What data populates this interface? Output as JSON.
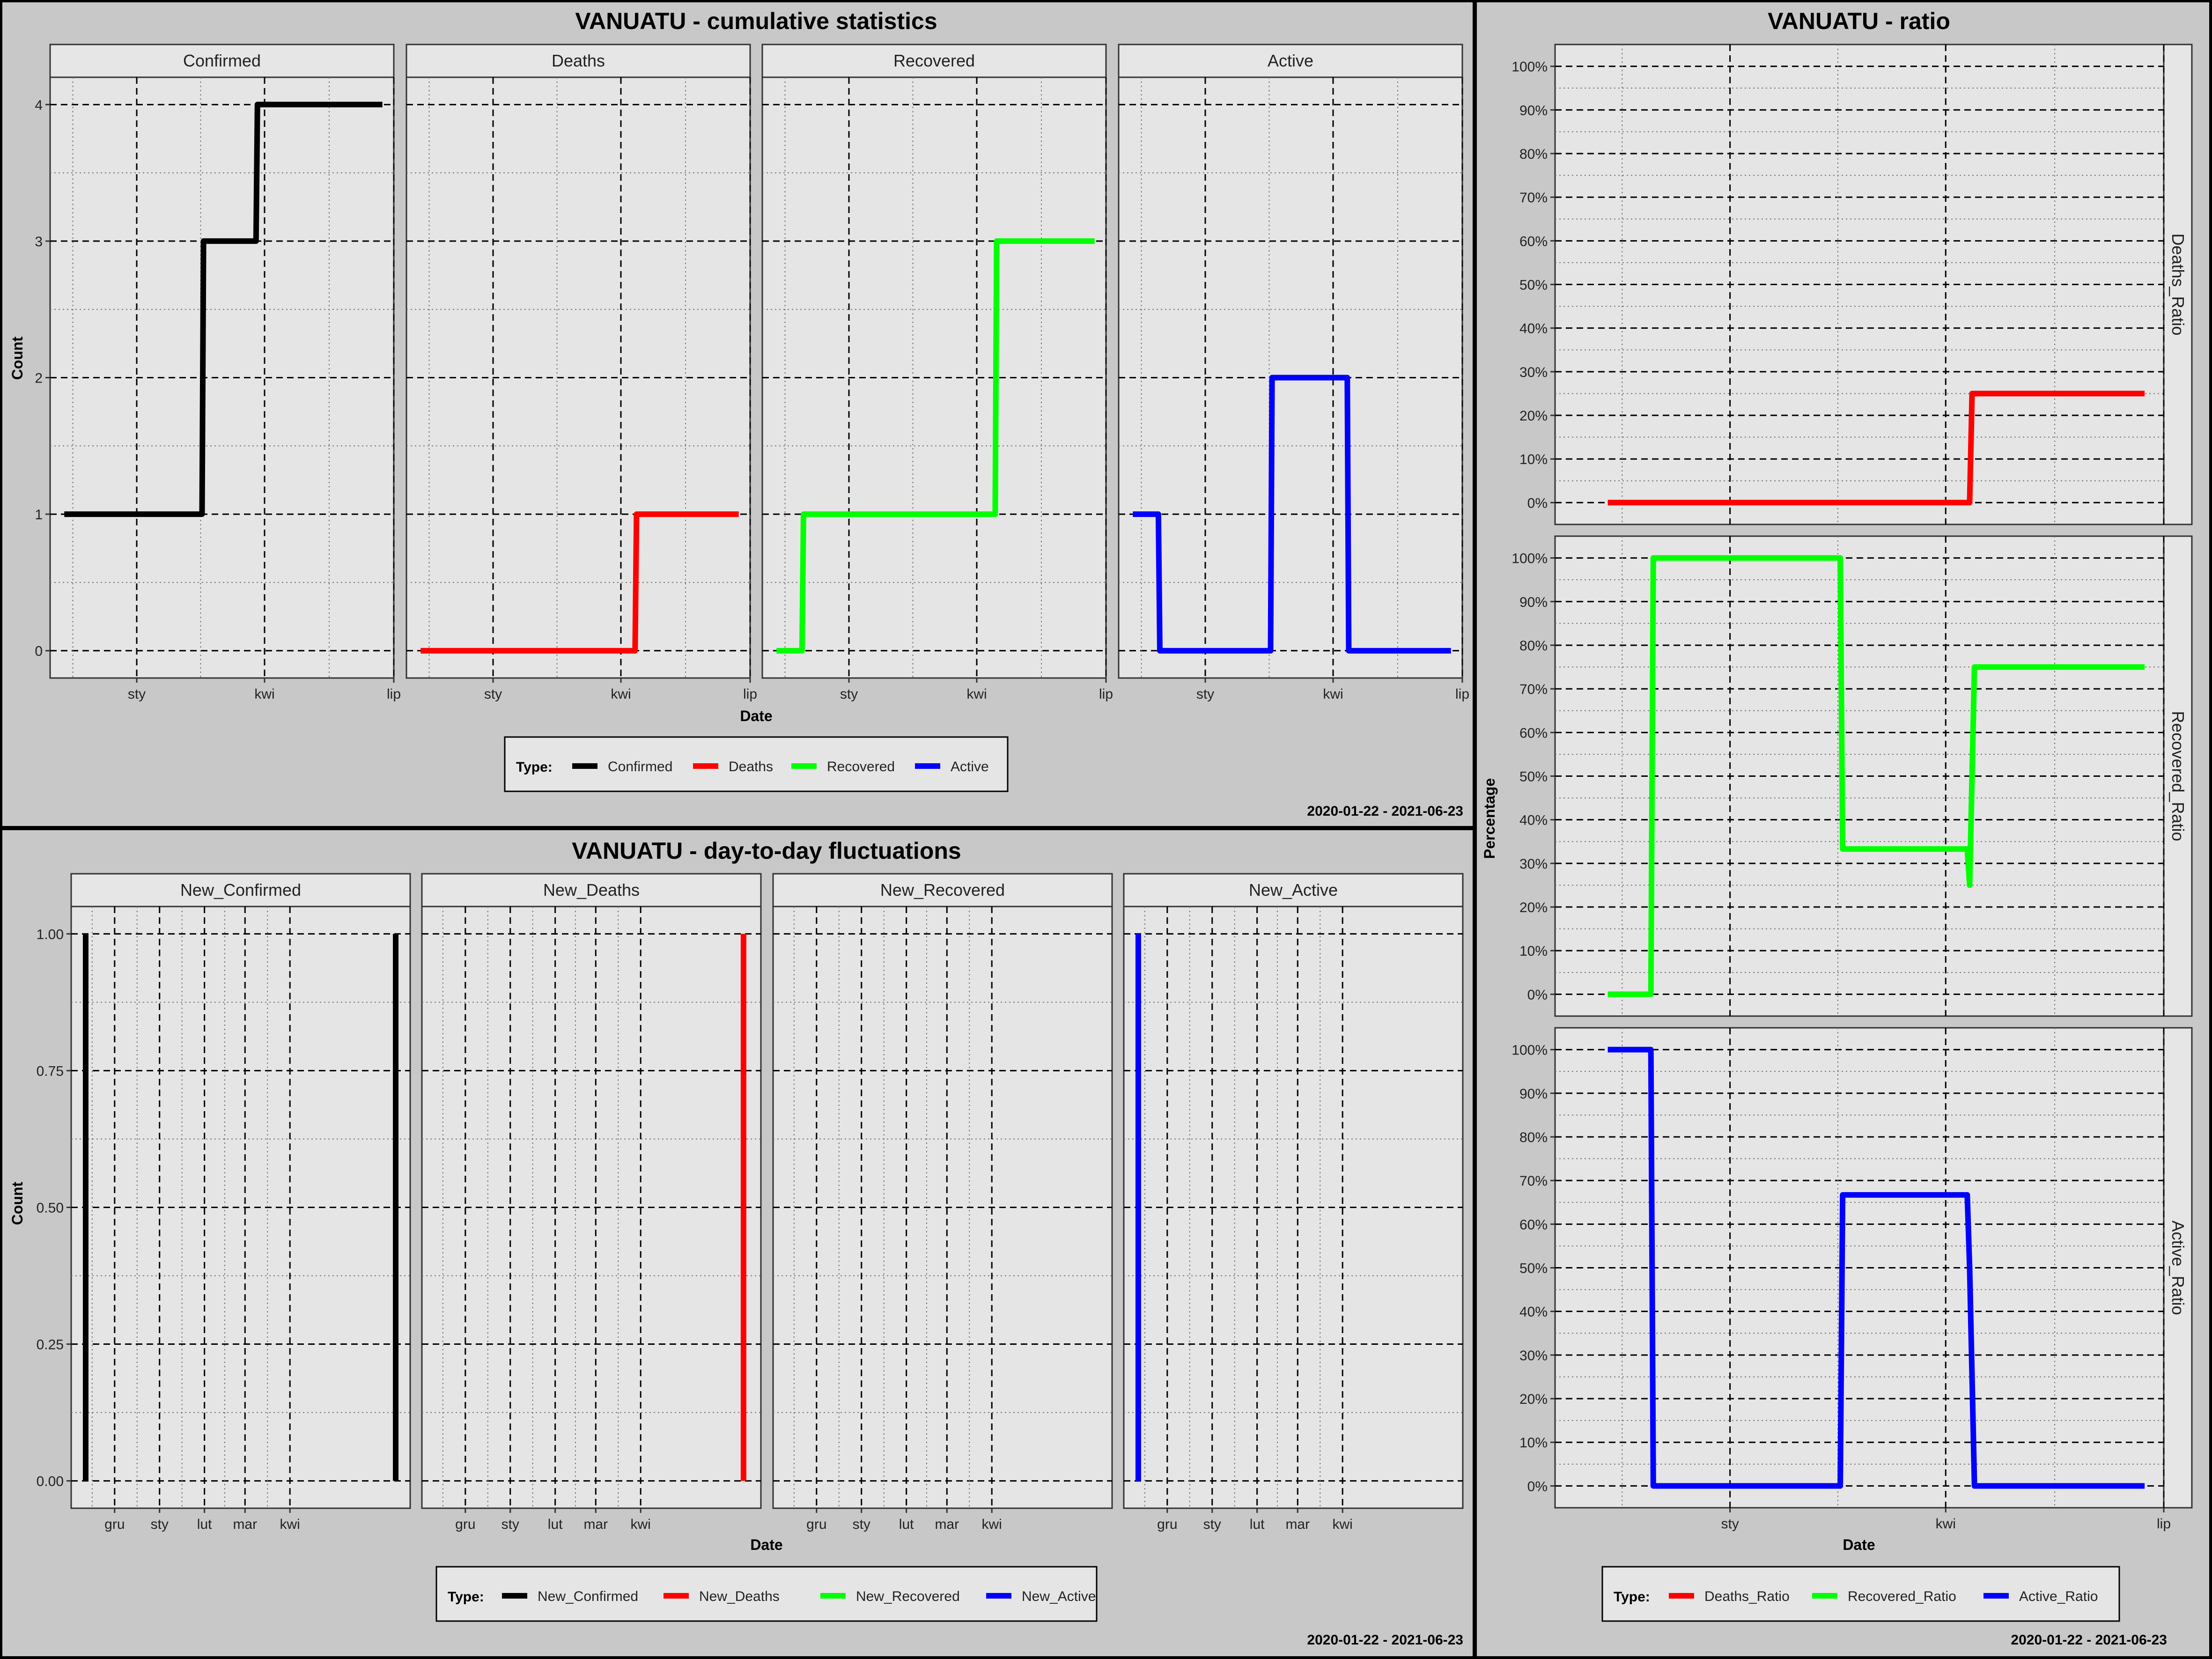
{
  "colors": {
    "Confirmed": "#000000",
    "Deaths": "#ff0000",
    "Recovered": "#00ff00",
    "Active": "#0000ff",
    "New_Confirmed": "#000000",
    "New_Deaths": "#ff0000",
    "New_Recovered": "#00ff00",
    "New_Active": "#0000ff",
    "Deaths_Ratio": "#ff0000",
    "Recovered_Ratio": "#00ff00",
    "Active_Ratio": "#0000ff",
    "background": "#c8c8c8",
    "panel": "#e5e5e5",
    "strip": "#e6e6e6"
  },
  "cumulative": {
    "title": "VANUATU - cumulative statistics",
    "xlabel": "Date",
    "ylabel": "Count",
    "legend_title": "Type:",
    "legend": [
      "Confirmed",
      "Deaths",
      "Recovered",
      "Active"
    ],
    "date_range": "2020-01-22 - 2021-06-23"
  },
  "fluctuations": {
    "title": "VANUATU - day-to-day fluctuations",
    "xlabel": "Date",
    "ylabel": "Count",
    "legend_title": "Type:",
    "legend": [
      "New_Confirmed",
      "New_Deaths",
      "New_Recovered",
      "New_Active"
    ],
    "date_range": "2020-01-22 - 2021-06-23"
  },
  "ratio": {
    "title": "VANUATU - ratio",
    "xlabel": "Date",
    "ylabel": "Percentage",
    "legend_title": "Type:",
    "legend": [
      "Deaths_Ratio",
      "Recovered_Ratio",
      "Active_Ratio"
    ],
    "date_range": "2020-01-22 - 2021-06-23"
  },
  "chart_data": [
    {
      "id": "cumulative",
      "type": "line",
      "facets": [
        "Confirmed",
        "Deaths",
        "Recovered",
        "Active"
      ],
      "x_range": [
        "2020-11-01",
        "2021-07-01"
      ],
      "x_ticks": [
        {
          "date": "2021-01-01",
          "label": "sty"
        },
        {
          "date": "2021-04-01",
          "label": "kwi"
        },
        {
          "date": "2021-07-01",
          "label": "lip"
        }
      ],
      "ylim": [
        -0.2,
        4.2
      ],
      "y_ticks": [
        0,
        1,
        2,
        3,
        4
      ],
      "series": [
        {
          "name": "Confirmed",
          "points": [
            [
              "2020-11-11",
              1
            ],
            [
              "2021-02-16",
              1
            ],
            [
              "2021-02-17",
              3
            ],
            [
              "2021-03-26",
              3
            ],
            [
              "2021-03-27",
              4
            ],
            [
              "2021-06-23",
              4
            ]
          ]
        },
        {
          "name": "Deaths",
          "points": [
            [
              "2020-11-11",
              0
            ],
            [
              "2021-04-11",
              0
            ],
            [
              "2021-04-12",
              1
            ],
            [
              "2021-06-23",
              1
            ]
          ]
        },
        {
          "name": "Recovered",
          "points": [
            [
              "2020-11-11",
              0
            ],
            [
              "2020-11-29",
              0
            ],
            [
              "2020-11-30",
              1
            ],
            [
              "2021-04-14",
              1
            ],
            [
              "2021-04-15",
              3
            ],
            [
              "2021-06-23",
              3
            ]
          ]
        },
        {
          "name": "Active",
          "points": [
            [
              "2020-11-11",
              1
            ],
            [
              "2020-11-29",
              1
            ],
            [
              "2020-11-30",
              0
            ],
            [
              "2021-02-16",
              0
            ],
            [
              "2021-02-17",
              2
            ],
            [
              "2021-04-11",
              2
            ],
            [
              "2021-04-12",
              0
            ],
            [
              "2021-06-23",
              0
            ]
          ]
        }
      ]
    },
    {
      "id": "fluctuations",
      "type": "line",
      "facets": [
        "New_Confirmed",
        "New_Deaths",
        "New_Recovered",
        "New_Active"
      ],
      "x_range": [
        "2020-11-01",
        "2021-06-23"
      ],
      "x_ticks": [
        {
          "date": "2020-12-01",
          "label": "gru"
        },
        {
          "date": "2021-01-01",
          "label": "sty"
        },
        {
          "date": "2021-02-01",
          "label": "lut"
        },
        {
          "date": "2021-03-01",
          "label": "mar"
        },
        {
          "date": "2021-04-01",
          "label": "kwi"
        }
      ],
      "ylim": [
        -0.05,
        1.05
      ],
      "y_ticks": [
        "0.00",
        "0.25",
        "0.50",
        "0.75",
        "1.00"
      ],
      "series": [
        {
          "name": "New_Confirmed",
          "spikes": [
            [
              "2020-11-11",
              1
            ],
            [
              "2021-06-13",
              1
            ]
          ]
        },
        {
          "name": "New_Deaths",
          "spikes": [
            [
              "2021-06-11",
              1
            ]
          ]
        },
        {
          "name": "New_Recovered",
          "spikes": []
        },
        {
          "name": "New_Active",
          "spikes": [
            [
              "2020-11-11",
              1
            ]
          ]
        }
      ]
    },
    {
      "id": "ratio",
      "type": "line",
      "facets": [
        "Deaths_Ratio",
        "Recovered_Ratio",
        "Active_Ratio"
      ],
      "x_range": [
        "2020-10-20",
        "2021-07-01"
      ],
      "x_ticks": [
        {
          "date": "2021-01-01",
          "label": "sty"
        },
        {
          "date": "2021-04-01",
          "label": "kwi"
        },
        {
          "date": "2021-07-01",
          "label": "lip"
        }
      ],
      "ylim": [
        -5,
        105
      ],
      "y_ticks": [
        "0%",
        "10%",
        "20%",
        "30%",
        "40%",
        "50%",
        "60%",
        "70%",
        "80%",
        "90%",
        "100%"
      ],
      "series": [
        {
          "name": "Deaths_Ratio",
          "points": [
            [
              "2020-11-11",
              0
            ],
            [
              "2021-04-11",
              0
            ],
            [
              "2021-04-12",
              25
            ],
            [
              "2021-06-23",
              25
            ]
          ]
        },
        {
          "name": "Recovered_Ratio",
          "points": [
            [
              "2020-11-11",
              0
            ],
            [
              "2020-11-29",
              0
            ],
            [
              "2020-11-30",
              100
            ],
            [
              "2021-02-16",
              100
            ],
            [
              "2021-02-17",
              33.3
            ],
            [
              "2021-04-10",
              33.3
            ],
            [
              "2021-04-11",
              25
            ],
            [
              "2021-04-13",
              75
            ],
            [
              "2021-06-23",
              75
            ]
          ]
        },
        {
          "name": "Active_Ratio",
          "points": [
            [
              "2020-11-11",
              100
            ],
            [
              "2020-11-29",
              100
            ],
            [
              "2020-11-30",
              0
            ],
            [
              "2021-02-16",
              0
            ],
            [
              "2021-02-17",
              66.7
            ],
            [
              "2021-04-10",
              66.7
            ],
            [
              "2021-04-11",
              50
            ],
            [
              "2021-04-13",
              0
            ],
            [
              "2021-06-23",
              0
            ]
          ]
        }
      ]
    }
  ]
}
